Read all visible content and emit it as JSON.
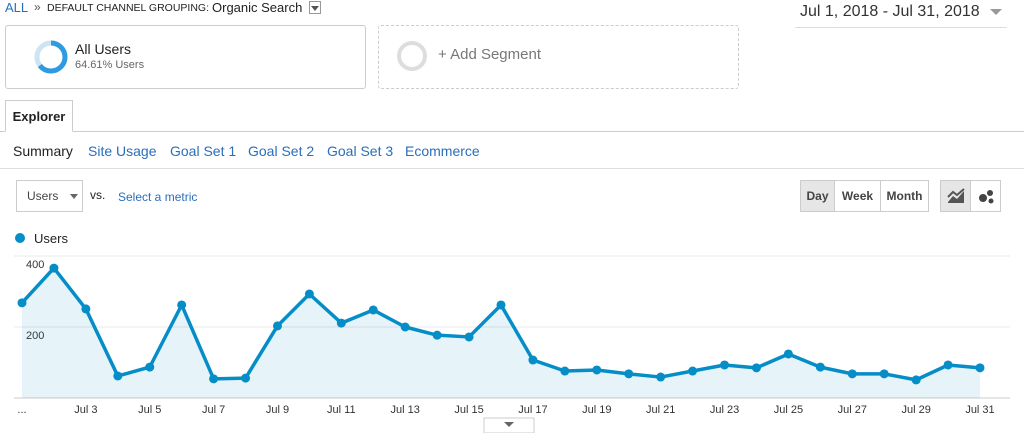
{
  "breadcrumb": {
    "root": "ALL",
    "separator": "»",
    "label": "DEFAULT CHANNEL GROUPING:",
    "value": "Organic Search"
  },
  "date_range": "Jul 1, 2018 - Jul 31, 2018",
  "segments": [
    {
      "name": "All Users",
      "detail": "64.61% Users"
    },
    {
      "name": "+ Add Segment"
    }
  ],
  "tabs": [
    "Explorer"
  ],
  "subtabs": [
    "Summary",
    "Site Usage",
    "Goal Set 1",
    "Goal Set 2",
    "Goal Set 3",
    "Ecommerce"
  ],
  "metric_select": "Users",
  "vs": "vs.",
  "select_metric": "Select a metric",
  "granularity": [
    "Day",
    "Week",
    "Month"
  ],
  "chart_data": {
    "type": "line",
    "area": true,
    "grid": true,
    "categories": [
      "...",
      null,
      "Jul 3",
      null,
      "Jul 5",
      null,
      "Jul 7",
      null,
      "Jul 9",
      null,
      "Jul 11",
      null,
      "Jul 13",
      null,
      "Jul 15",
      null,
      "Jul 17",
      null,
      "Jul 19",
      null,
      "Jul 21",
      null,
      "Jul 23",
      null,
      "Jul 25",
      null,
      "Jul 27",
      null,
      "Jul 29",
      null,
      "Jul 31"
    ],
    "series": [
      {
        "name": "Users",
        "color": "#058dc7",
        "values": [
          268,
          366,
          251,
          62,
          87,
          262,
          54,
          56,
          203,
          293,
          211,
          248,
          200,
          177,
          172,
          262,
          107,
          76,
          79,
          68,
          59,
          76,
          93,
          85,
          124,
          87,
          68,
          68,
          51,
          93,
          85
        ]
      }
    ],
    "ylim": [
      0,
      400
    ],
    "yticks": [
      200,
      400
    ]
  }
}
